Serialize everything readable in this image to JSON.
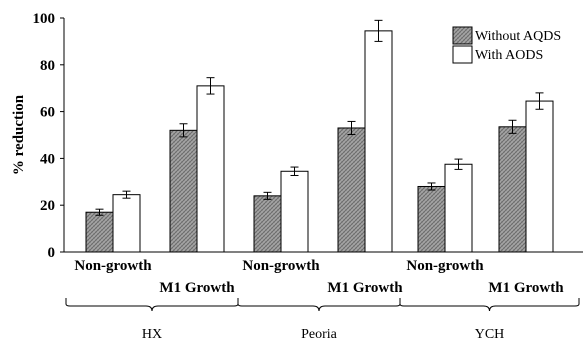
{
  "chart_data": {
    "type": "bar",
    "ylabel": "% reduction",
    "ylim": [
      0,
      100
    ],
    "yticks": [
      0,
      20,
      40,
      60,
      80,
      100
    ],
    "categories": [
      "Non-growth",
      "M1 Growth",
      "Non-growth",
      "M1 Growth",
      "Non-growth",
      "M1 Growth"
    ],
    "groups": [
      {
        "label": "HX",
        "categories": [
          0,
          1
        ]
      },
      {
        "label": "Peoria",
        "categories": [
          2,
          3
        ]
      },
      {
        "label": "YCH",
        "categories": [
          4,
          5
        ]
      }
    ],
    "series": [
      {
        "name": "Without AQDS",
        "values": [
          17,
          52,
          24,
          53,
          28,
          53.5
        ],
        "errors": [
          1.3,
          2.8,
          1.5,
          2.8,
          1.5,
          2.8
        ],
        "color": "#909090"
      },
      {
        "name": "With AODS",
        "values": [
          24.5,
          71,
          34.5,
          94.5,
          37.5,
          64.5
        ],
        "errors": [
          1.5,
          3.5,
          1.8,
          4.5,
          2.2,
          3.5
        ],
        "color": "#ffffff"
      }
    ],
    "legend_position": "top-right",
    "grid": false
  }
}
